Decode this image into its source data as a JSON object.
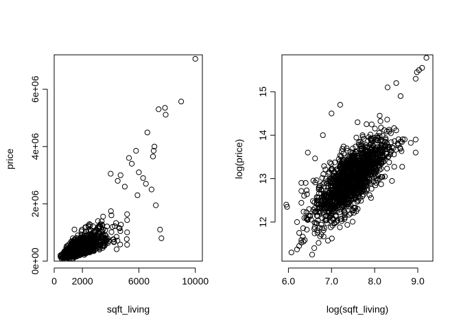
{
  "chart_data": [
    {
      "type": "scatter",
      "xlabel": "sqft_living",
      "ylabel": "price",
      "xlim": [
        0,
        10500
      ],
      "ylim": [
        0,
        7200000
      ],
      "xticks": [
        0,
        2000,
        6000,
        10000
      ],
      "xtick_labels": [
        "0",
        "2000",
        "6000",
        "10000"
      ],
      "yticks": [
        0,
        2000000,
        4000000,
        6000000
      ],
      "ytick_labels": [
        "0e+00",
        "2e+06",
        "4e+06",
        "6e+06"
      ],
      "marker": "open-circle",
      "grid": false,
      "cloud": {
        "description_points": [
          {
            "x": 600,
            "y": 150000
          },
          {
            "x": 800,
            "y": 250000
          },
          {
            "x": 1000,
            "y": 300000
          },
          {
            "x": 1200,
            "y": 350000
          },
          {
            "x": 1500,
            "y": 420000
          },
          {
            "x": 1800,
            "y": 480000
          },
          {
            "x": 2000,
            "y": 550000
          },
          {
            "x": 2300,
            "y": 600000
          },
          {
            "x": 2600,
            "y": 700000
          },
          {
            "x": 3000,
            "y": 800000
          },
          {
            "x": 3400,
            "y": 900000
          },
          {
            "x": 3800,
            "y": 1100000
          }
        ]
      },
      "outliers": [
        {
          "x": 10000,
          "y": 7060000
        },
        {
          "x": 9000,
          "y": 5570000
        },
        {
          "x": 7850,
          "y": 5350000
        },
        {
          "x": 7400,
          "y": 5300000
        },
        {
          "x": 7900,
          "y": 5110000
        },
        {
          "x": 6600,
          "y": 4490000
        },
        {
          "x": 7100,
          "y": 4000000
        },
        {
          "x": 7050,
          "y": 3850000
        },
        {
          "x": 7000,
          "y": 3650000
        },
        {
          "x": 5800,
          "y": 3850000
        },
        {
          "x": 5300,
          "y": 3600000
        },
        {
          "x": 5500,
          "y": 3400000
        },
        {
          "x": 6000,
          "y": 3100000
        },
        {
          "x": 7500,
          "y": 1100000
        },
        {
          "x": 7600,
          "y": 800000
        },
        {
          "x": 7200,
          "y": 1950000
        },
        {
          "x": 6300,
          "y": 2900000
        },
        {
          "x": 6500,
          "y": 2700000
        },
        {
          "x": 4000,
          "y": 3050000
        },
        {
          "x": 4500,
          "y": 2800000
        },
        {
          "x": 5000,
          "y": 2600000
        },
        {
          "x": 4700,
          "y": 3000000
        },
        {
          "x": 6900,
          "y": 2500000
        },
        {
          "x": 5900,
          "y": 2300000
        }
      ]
    },
    {
      "type": "scatter",
      "xlabel": "log(sqft_living)",
      "ylabel": "log(price)",
      "xlim": [
        5.85,
        9.35
      ],
      "ylim": [
        11.1,
        15.85
      ],
      "xticks": [
        6.0,
        7.0,
        8.0,
        9.0
      ],
      "xtick_labels": [
        "6.0",
        "7.0",
        "8.0",
        "9.0"
      ],
      "yticks": [
        12,
        13,
        14,
        15
      ],
      "ytick_labels": [
        "12",
        "13",
        "14",
        "15"
      ],
      "marker": "open-circle",
      "grid": false,
      "cloud": {
        "slope": 0.84,
        "intercept": 6.73
      },
      "outliers": [
        {
          "x": 9.2,
          "y": 15.78
        },
        {
          "x": 9.1,
          "y": 15.55
        },
        {
          "x": 8.98,
          "y": 15.45
        },
        {
          "x": 9.03,
          "y": 15.5
        },
        {
          "x": 8.95,
          "y": 15.3
        },
        {
          "x": 8.95,
          "y": 13.6
        },
        {
          "x": 8.95,
          "y": 13.9
        },
        {
          "x": 5.95,
          "y": 12.4
        },
        {
          "x": 5.97,
          "y": 12.35
        },
        {
          "x": 6.07,
          "y": 11.3
        },
        {
          "x": 6.2,
          "y": 11.37
        },
        {
          "x": 6.25,
          "y": 11.45
        },
        {
          "x": 6.35,
          "y": 11.55
        },
        {
          "x": 6.55,
          "y": 11.25
        },
        {
          "x": 6.6,
          "y": 11.4
        },
        {
          "x": 6.7,
          "y": 11.52
        },
        {
          "x": 6.2,
          "y": 12.0
        },
        {
          "x": 6.25,
          "y": 11.75
        },
        {
          "x": 6.3,
          "y": 12.9
        },
        {
          "x": 6.4,
          "y": 12.9
        },
        {
          "x": 7.0,
          "y": 14.5
        },
        {
          "x": 7.2,
          "y": 14.7
        },
        {
          "x": 8.3,
          "y": 15.1
        },
        {
          "x": 8.5,
          "y": 15.2
        },
        {
          "x": 8.6,
          "y": 14.9
        },
        {
          "x": 6.8,
          "y": 14.0
        },
        {
          "x": 6.45,
          "y": 13.6
        }
      ]
    }
  ]
}
